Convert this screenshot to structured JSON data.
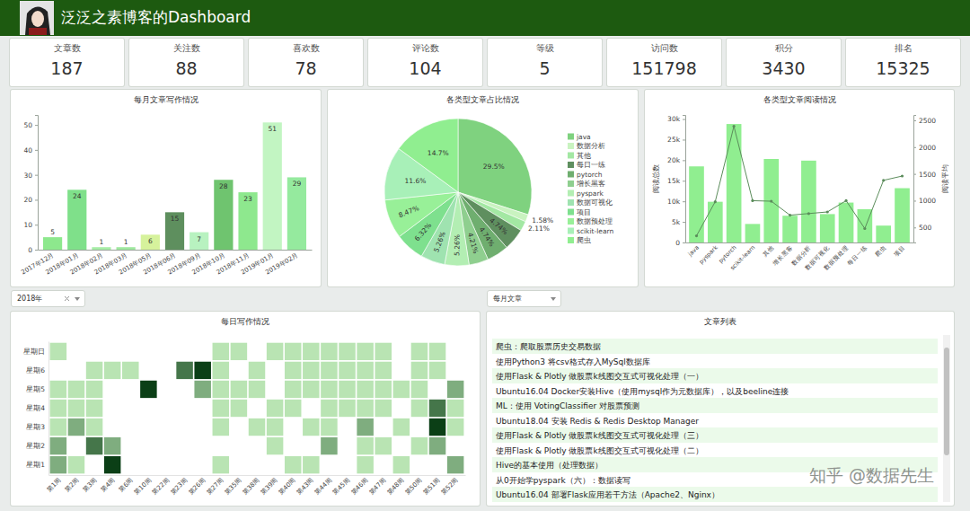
{
  "header": {
    "title": "泛泛之素博客的Dashboard"
  },
  "kpis": [
    {
      "label": "文章数",
      "value": 187
    },
    {
      "label": "关注数",
      "value": 88
    },
    {
      "label": "喜欢数",
      "value": 78
    },
    {
      "label": "评论数",
      "value": 104
    },
    {
      "label": "等级",
      "value": 5
    },
    {
      "label": "访问数",
      "value": 151798
    },
    {
      "label": "积分",
      "value": 3430
    },
    {
      "label": "排名",
      "value": 15325
    }
  ],
  "chart_data": [
    {
      "type": "bar",
      "title": "每月文章写作情况",
      "categories": [
        "2017年12月",
        "2018年01月",
        "2018年02月",
        "2018年03月",
        "2018年05月",
        "2018年06月",
        "2018年09月",
        "2018年10月",
        "2018年11月",
        "2019年01月",
        "2019年02月"
      ],
      "values": [
        5,
        24,
        1,
        1,
        6,
        15,
        7,
        28,
        23,
        51,
        29
      ],
      "colors": [
        "#8de88d",
        "#7fe08a",
        "#a6eea6",
        "#9ee89e",
        "#d6f29c",
        "#5e8f5e",
        "#b8f2c0",
        "#6fc46f",
        "#8ee88e",
        "#c2f5c2",
        "#95ea9e"
      ],
      "ylim": [
        0,
        54
      ],
      "yticks": [
        0,
        10,
        20,
        30,
        40,
        50
      ],
      "grid": false,
      "data_labels": true
    },
    {
      "type": "pie",
      "title": "各类型文章占比情况",
      "categories": [
        "java",
        "数据分析",
        "其他",
        "每日一练",
        "pytorch",
        "增长黑客",
        "pyspark",
        "数据可视化",
        "项目",
        "数据预处理",
        "scikit-learn",
        "爬虫"
      ],
      "values": [
        29.5,
        1.58,
        2.11,
        4.74,
        4.74,
        4.21,
        5.26,
        5.26,
        6.32,
        8.47,
        11.6,
        14.7
      ],
      "value_labels": [
        "29.5%",
        "1.58%",
        "2.11%",
        "4.74%",
        "4.74%",
        "4.21%",
        "5.26%",
        "5.26%",
        "6.32%",
        "8.47%",
        "11.6%",
        "14.7%"
      ],
      "colors": [
        "#7fd27f",
        "#c9f3c0",
        "#a3e8a3",
        "#5f8f5f",
        "#6fae6f",
        "#8fcf8f",
        "#b3eeb3",
        "#9fe3b0",
        "#7ee08e",
        "#98f098",
        "#a8f0b8",
        "#90ee90"
      ],
      "legend": "right"
    },
    {
      "type": "bar",
      "title": "各类型文章阅读情况",
      "categories": [
        "java",
        "pyspark",
        "pytorch",
        "scikit-learn",
        "其他",
        "增长黑客",
        "数据分析",
        "数据可视化",
        "数据预处理",
        "每日一练",
        "爬虫",
        "项目"
      ],
      "ylabel": "阅读总数",
      "y2label": "阅读平均",
      "ylim": [
        0,
        31000
      ],
      "yticks": [
        0,
        {
          "value": 5000,
          "label": "5k"
        },
        {
          "value": 10000,
          "label": "10k"
        },
        {
          "value": 15000,
          "label": "15k"
        },
        {
          "value": 20000,
          "label": "20k"
        },
        {
          "value": 25000,
          "label": "25k"
        },
        {
          "value": 30000,
          "label": "30k"
        }
      ],
      "y2lim": [
        220,
        2600
      ],
      "y2ticks": [
        500,
        1000,
        1500,
        2000,
        2500
      ],
      "grid": false,
      "series": [
        {
          "type": "bar",
          "color": "#90ee90",
          "values": [
            18500,
            9900,
            28800,
            4500,
            20300,
            6500,
            19900,
            6900,
            9700,
            8100,
            4100,
            13200
          ]
        },
        {
          "type": "line",
          "axis": "y2",
          "color": "#5b8c5b",
          "marker": "circle",
          "values": [
            345,
            980,
            2390,
            1000,
            990,
            730,
            760,
            790,
            1000,
            480,
            1380,
            1460
          ]
        }
      ]
    },
    {
      "type": "heatmap",
      "title": "每日写作情况",
      "x": [
        "第1周",
        "第2周",
        "第3周",
        "第4周",
        "第6周",
        "第10周",
        "第22周",
        "第23周",
        "第26周",
        "第27周",
        "第35周",
        "第38周",
        "第39周",
        "第40周",
        "第43周",
        "第44周",
        "第45周",
        "第46周",
        "第47周",
        "第48周",
        "第50周",
        "第51周",
        "第52周"
      ],
      "y": [
        "星期日",
        "星期6",
        "星期5",
        "星期4",
        "星期3",
        "星期2",
        "星期1"
      ],
      "values": [
        [
          1,
          0,
          0,
          0,
          0,
          0,
          0,
          0,
          0,
          1,
          1,
          0,
          1,
          1,
          1,
          1,
          1,
          1,
          1,
          0,
          1,
          1,
          0
        ],
        [
          0,
          0,
          1,
          1,
          1,
          0,
          0,
          3,
          4,
          1,
          0,
          1,
          0,
          1,
          1,
          1,
          1,
          1,
          1,
          0,
          1,
          1,
          0
        ],
        [
          1,
          1,
          1,
          0,
          0,
          4,
          0,
          0,
          2,
          1,
          1,
          1,
          0,
          1,
          1,
          1,
          1,
          1,
          1,
          1,
          1,
          0,
          2
        ],
        [
          1,
          1,
          1,
          0,
          0,
          0,
          0,
          0,
          0,
          1,
          1,
          0,
          1,
          1,
          0,
          1,
          1,
          1,
          1,
          0,
          1,
          3,
          1
        ],
        [
          1,
          2,
          1,
          0,
          0,
          0,
          0,
          0,
          0,
          1,
          0,
          1,
          1,
          0,
          1,
          1,
          0,
          2,
          0,
          1,
          0,
          4,
          1
        ],
        [
          2,
          0,
          3,
          2,
          0,
          0,
          0,
          0,
          0,
          0,
          0,
          0,
          1,
          0,
          0,
          2,
          0,
          1,
          1,
          0,
          1,
          2,
          0
        ],
        [
          2,
          1,
          0,
          4,
          0,
          0,
          0,
          0,
          0,
          1,
          0,
          0,
          0,
          1,
          1,
          0,
          0,
          1,
          0,
          1,
          0,
          0,
          2
        ]
      ]
    }
  ],
  "filters": [
    "2018年",
    "每月文章"
  ],
  "article_list": {
    "title": "文章列表",
    "items": [
      "爬虫：爬取股票历史交易数据",
      "使用Python3 将csv格式存入MySql数据库",
      "使用Flask & Plotly 做股票k线图交互式可视化处理（一）",
      "Ubuntu16.04 Docker安装Hive（使用mysql作为元数据库），以及beeline连接",
      "ML：使用 VotingClassifier 对股票预测",
      "Ubuntu18.04 安装 Redis & Redis Desktop Manager",
      "使用Flask & Plotly 做股票k线图交互式可视化处理（三）",
      "使用Flask & Plotly 做股票k线图交互式可视化处理（二）",
      "Hive的基本使用（处理数据）",
      "从0开始学pyspark（六）：数据读写",
      "Ubuntu16.04 部署Flask应用若干方法（Apache2、Nginx）"
    ]
  },
  "watermark": "知乎 @数据先生"
}
